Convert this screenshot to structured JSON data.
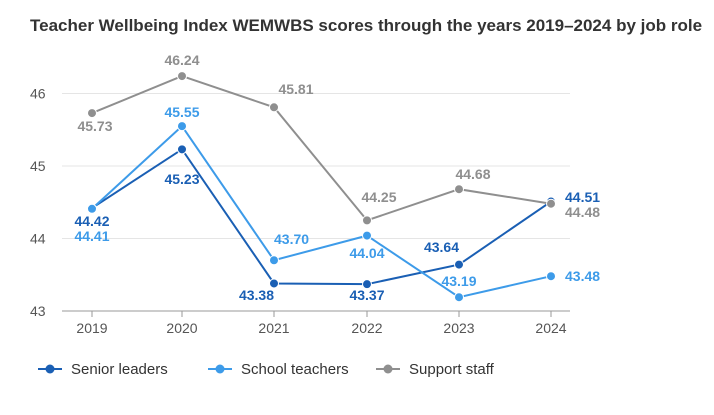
{
  "title": "Teacher Wellbeing Index WEMWBS scores through the years 2019–2024 by job role",
  "chart_data": {
    "type": "line",
    "title": "Teacher Wellbeing Index WEMWBS scores through the years 2019–2024 by job role",
    "xlabel": "",
    "ylabel": "",
    "x": [
      "2019",
      "2020",
      "2021",
      "2022",
      "2023",
      "2024"
    ],
    "ylim": [
      43,
      46.2
    ],
    "yticks": [
      43,
      44,
      45,
      46
    ],
    "grid": "horizontal",
    "legend_position": "bottom",
    "series": [
      {
        "name": "Senior leaders",
        "color": "#1a5fb4",
        "values": [
          44.42,
          45.23,
          43.38,
          43.37,
          43.64,
          44.51
        ],
        "labels": [
          "44.42",
          "45.23",
          "43.38",
          "43.37",
          "43.64",
          "44.51"
        ]
      },
      {
        "name": "School teachers",
        "color": "#3d9be9",
        "values": [
          44.41,
          45.55,
          43.7,
          44.04,
          43.19,
          43.48
        ],
        "labels": [
          "44.41",
          "45.55",
          "43.70",
          "44.04",
          "43.19",
          "43.48"
        ]
      },
      {
        "name": "Support staff",
        "color": "#8f8f8f",
        "values": [
          45.73,
          46.24,
          45.81,
          44.25,
          44.68,
          44.48
        ],
        "labels": [
          "45.73",
          "46.24",
          "45.81",
          "44.25",
          "44.68",
          "44.48"
        ]
      }
    ]
  }
}
